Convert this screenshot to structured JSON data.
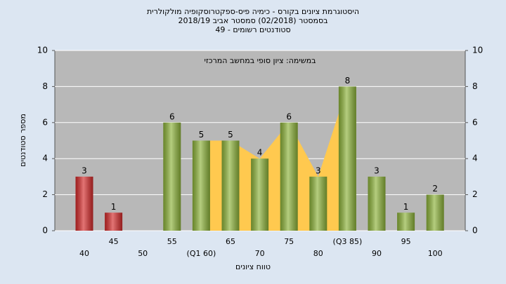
{
  "chart_data": {
    "type": "bar",
    "title": [
      "היסטוגרמת ציונים בקורס - כימיה פיס-ספקטרוסקופיה מולקולרית",
      "בסמסטר  (02/2018)  סמסטר אביב 2018/19",
      "סטודנטים רשומים - 49"
    ],
    "subtitle": "במשימה: ציון סופי במחשב המרכזי",
    "x_label": "טווח ציונים",
    "y_label": "מספר סטודנטים",
    "categories": [
      "40",
      "45",
      "50",
      "55",
      "(Q1 60)",
      "65",
      "70",
      "75",
      "80",
      "(Q3 85)",
      "90",
      "95",
      "100"
    ],
    "values": [
      3,
      1,
      null,
      6,
      5,
      5,
      4,
      6,
      3,
      8,
      3,
      1,
      2
    ],
    "colors": [
      "#d42a2a",
      "#d42a2a",
      "#8db33a",
      "#8db33a",
      "#8db33a",
      "#8db33a",
      "#8db33a",
      "#8db33a",
      "#8db33a",
      "#8db33a",
      "#8db33a",
      "#8db33a",
      "#8db33a"
    ],
    "quartile_band_color": "#ffc94f",
    "ylim": [
      0,
      10
    ],
    "yticks": [
      0,
      2,
      4,
      6,
      8,
      10
    ],
    "grid": true
  }
}
